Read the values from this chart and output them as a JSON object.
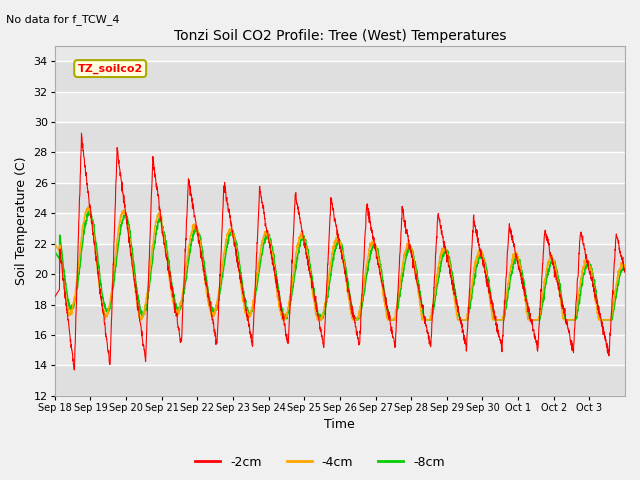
{
  "title": "Tonzi Soil CO2 Profile: Tree (West) Temperatures",
  "subtitle": "No data for f_TCW_4",
  "xlabel": "Time",
  "ylabel": "Soil Temperature (C)",
  "ylim": [
    12,
    35
  ],
  "yticks": [
    12,
    14,
    16,
    18,
    20,
    22,
    24,
    26,
    28,
    30,
    32,
    34
  ],
  "legend_label": "TZ_soilco2",
  "series": [
    "-2cm",
    "-4cm",
    "-8cm"
  ],
  "colors": [
    "#ff0000",
    "#ffa500",
    "#00cc00"
  ],
  "background_color": "#f0f0f0",
  "plot_bg_color": "#e8e8e8",
  "grid_color": "#ffffff",
  "x_labels": [
    "Sep 18",
    "Sep 19",
    "Sep 20",
    "Sep 21",
    "Sep 22",
    "Sep 23",
    "Sep 24",
    "Sep 25",
    "Sep 26",
    "Sep 27",
    "Sep 28",
    "Sep 29",
    "Sep 30",
    "Oct 1",
    "Oct 2",
    "Oct 3"
  ]
}
